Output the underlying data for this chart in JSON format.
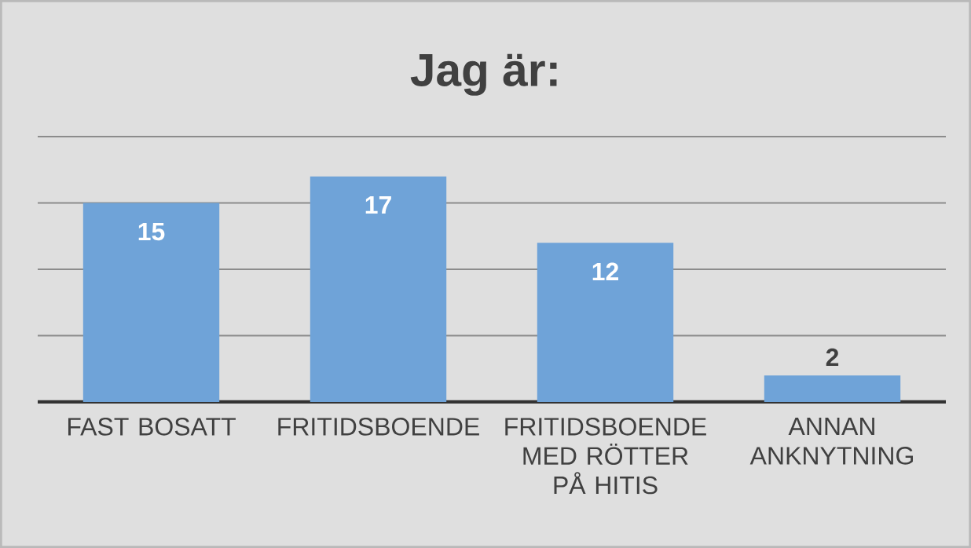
{
  "chart_data": {
    "type": "bar",
    "title": "Jag är:",
    "categories": [
      "FAST BOSATT",
      "FRITIDSBOENDE",
      "FRITIDSBOENDE MED RÖTTER PÅ HITIS",
      "ANNAN ANKNYTNING"
    ],
    "values": [
      15,
      17,
      12,
      2
    ],
    "color": "#6fa3d8",
    "ylim": [
      0,
      20
    ],
    "yticks": [
      {
        "value": 0,
        "label": null
      },
      {
        "value": 5,
        "label": null
      },
      {
        "value": 10,
        "label": null
      },
      {
        "value": 15,
        "label": null
      },
      {
        "value": 20,
        "label": null
      }
    ],
    "grid": "y",
    "tick_labels": "x",
    "data_labels": true
  }
}
